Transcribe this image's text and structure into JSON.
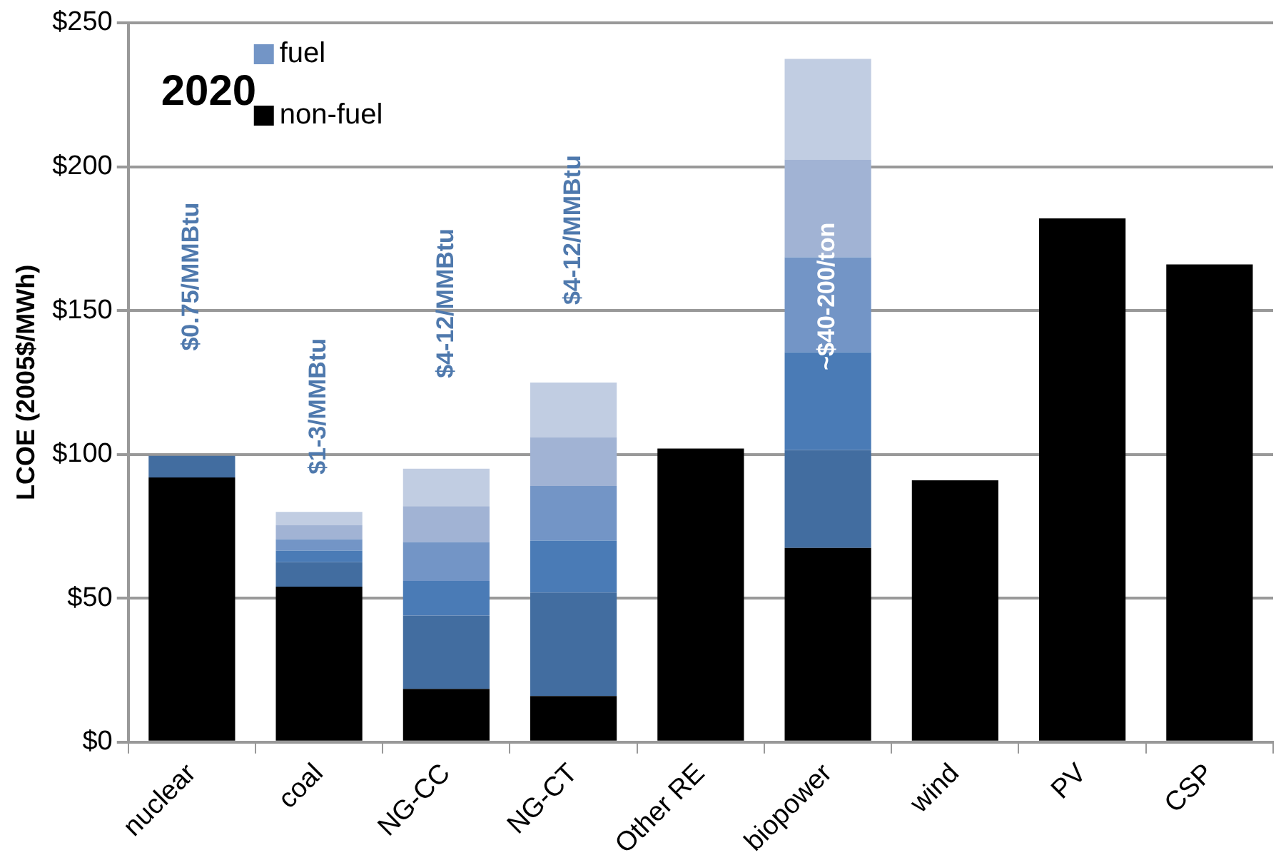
{
  "chart_data": {
    "type": "bar",
    "title": "2020",
    "ylabel": "LCOE (2005$/MWh)",
    "categories": [
      "nuclear",
      "coal",
      "NG-CC",
      "NG-CT",
      "Other RE",
      "biopower",
      "wind",
      "PV",
      "CSP"
    ],
    "stacked": true,
    "series": [
      {
        "name": "non-fuel",
        "color": "#000000",
        "values": [
          92,
          54,
          18.5,
          16,
          102,
          67.5,
          91,
          182,
          166
        ]
      },
      {
        "color": "#426da0",
        "values": [
          7.5,
          8.5,
          25.5,
          36,
          null,
          34,
          null,
          null,
          null
        ]
      },
      {
        "color": "#4a7bb6",
        "values": [
          null,
          4,
          12,
          18,
          null,
          34,
          null,
          null,
          null
        ]
      },
      {
        "name": "fuel",
        "color": "#7395c6",
        "values": [
          null,
          4,
          13.5,
          19,
          null,
          33,
          null,
          null,
          null
        ]
      },
      {
        "color": "#a1b3d4",
        "values": [
          null,
          5,
          12.5,
          17,
          null,
          34,
          null,
          null,
          null
        ]
      },
      {
        "color": "#c1cde2",
        "values": [
          null,
          4.5,
          13,
          19,
          null,
          35,
          null,
          null,
          null
        ]
      }
    ],
    "ylim": [
      0,
      250
    ],
    "yticks": [
      {
        "value": 0,
        "label": "$0"
      },
      {
        "value": 50,
        "label": "$50"
      },
      {
        "value": 100,
        "label": "$100"
      },
      {
        "value": 150,
        "label": "$150"
      },
      {
        "value": 200,
        "label": "$200"
      },
      {
        "value": 250,
        "label": "$250"
      }
    ],
    "grid": "y",
    "legend": "top left",
    "annotations": [
      "$0.75/MMBtu",
      "$1-3/MMBtu",
      "$4-12/MMBtu",
      "$4-12/MMBtu",
      "~$40-200/ton"
    ]
  }
}
